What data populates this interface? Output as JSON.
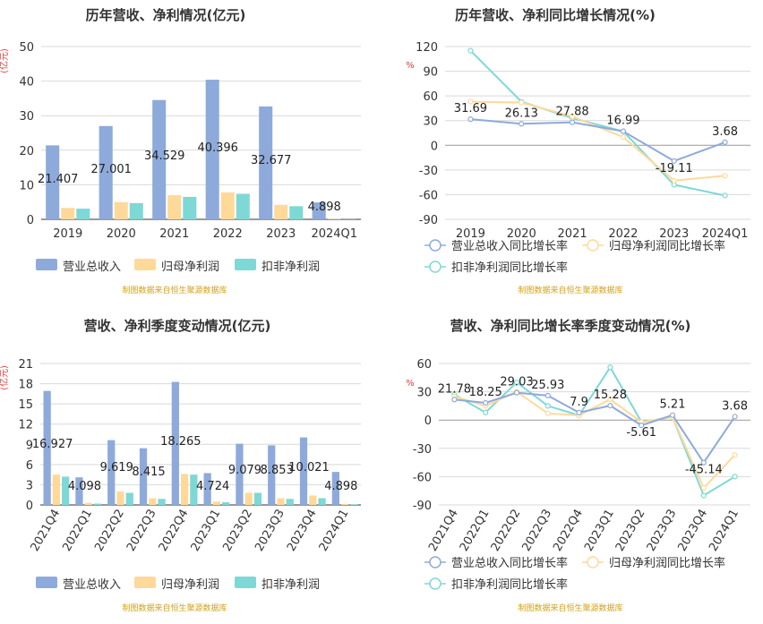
{
  "colors": {
    "revenue": "#8EAADB",
    "net_profit": "#FFD99A",
    "deducted_profit": "#7ED8D6",
    "unit_red": "#E03C3C",
    "source": "#D4A017",
    "axis": "#555555",
    "grid": "#D9D9D9"
  },
  "chart_data": [
    {
      "id": "annual_bar",
      "type": "bar",
      "title": "历年营收、净利情况(亿元)",
      "unit": "(亿元)",
      "categories": [
        "2019",
        "2020",
        "2021",
        "2022",
        "2023",
        "2024Q1"
      ],
      "ylim": [
        0,
        50
      ],
      "yticks": [
        0,
        10,
        20,
        30,
        40,
        50
      ],
      "series": [
        {
          "name": "营业总收入",
          "values": [
            21.407,
            27.001,
            34.529,
            40.396,
            32.677,
            4.898
          ],
          "labels": [
            "21.407",
            "27.001",
            "34.529",
            "40.396",
            "32.677",
            "4.898"
          ]
        },
        {
          "name": "归母净利润",
          "values": [
            3.3,
            5.0,
            7.0,
            7.8,
            4.2,
            0.1
          ]
        },
        {
          "name": "扣非净利润",
          "values": [
            3.1,
            4.7,
            6.5,
            7.4,
            3.8,
            0.05
          ]
        }
      ],
      "legend": "bottom",
      "source": "制图数据来自恒生聚源数据库"
    },
    {
      "id": "annual_line",
      "type": "line",
      "title": "历年营收、净利同比增长情况(%)",
      "unit": "%",
      "categories": [
        "2019",
        "2020",
        "2021",
        "2022",
        "2023",
        "2024Q1"
      ],
      "ylim": [
        -90,
        120
      ],
      "yticks": [
        -90,
        -60,
        -30,
        0,
        30,
        60,
        90,
        120
      ],
      "series": [
        {
          "name": "营业总收入同比增长率",
          "values": [
            31.69,
            26.13,
            27.88,
            16.99,
            -19.11,
            3.68
          ],
          "labels": [
            "31.69",
            "26.13",
            "27.88",
            "16.99",
            "-19.11",
            "3.68"
          ]
        },
        {
          "name": "归母净利润同比增长率",
          "values": [
            53,
            52,
            35,
            10,
            -43,
            -37
          ]
        },
        {
          "name": "扣非净利润同比增长率",
          "values": [
            115,
            53,
            33,
            17,
            -48,
            -61
          ]
        }
      ],
      "legend": "bottom",
      "source": "制图数据来自恒生聚源数据库"
    },
    {
      "id": "quarter_bar",
      "type": "bar",
      "title": "营收、净利季度变动情况(亿元)",
      "unit": "(亿元)",
      "categories": [
        "2021Q4",
        "2022Q1",
        "2022Q2",
        "2022Q3",
        "2022Q4",
        "2023Q1",
        "2023Q2",
        "2023Q3",
        "2023Q4",
        "2024Q1"
      ],
      "ylim": [
        0,
        21
      ],
      "yticks": [
        0,
        3,
        6,
        9,
        12,
        15,
        18,
        21
      ],
      "series": [
        {
          "name": "营业总收入",
          "values": [
            16.927,
            4.098,
            9.619,
            8.415,
            18.265,
            4.724,
            9.079,
            8.853,
            10.021,
            4.898
          ],
          "labels": [
            "16.927",
            "4.098",
            "9.619",
            "8.415",
            "18.265",
            "4.724",
            "9.079",
            "8.853",
            "10.021",
            "4.898"
          ]
        },
        {
          "name": "归母净利润",
          "values": [
            4.5,
            0.3,
            2.0,
            1.0,
            4.6,
            0.5,
            1.8,
            1.0,
            1.4,
            0.15
          ]
        },
        {
          "name": "扣非净利润",
          "values": [
            4.2,
            0.2,
            1.8,
            0.9,
            4.5,
            0.4,
            1.8,
            0.9,
            1.0,
            0.1
          ]
        }
      ],
      "legend": "bottom",
      "source": "制图数据来自恒生聚源数据库"
    },
    {
      "id": "quarter_line",
      "type": "line",
      "title": "营收、净利同比增长率季度变动情况(%)",
      "unit": "%",
      "categories": [
        "2021Q4",
        "2022Q1",
        "2022Q2",
        "2022Q3",
        "2022Q4",
        "2023Q1",
        "2023Q2",
        "2023Q3",
        "2023Q4",
        "2024Q1"
      ],
      "ylim": [
        -90,
        60
      ],
      "yticks": [
        -90,
        -60,
        -30,
        0,
        30,
        60
      ],
      "series": [
        {
          "name": "营业总收入同比增长率",
          "values": [
            21.78,
            18.25,
            29.03,
            25.93,
            7.9,
            15.28,
            -5.61,
            5.21,
            -45.14,
            3.68
          ],
          "labels": [
            "21.78",
            "18.25",
            "29.03",
            "25.93",
            "7.9",
            "15.28",
            "-5.61",
            "5.21",
            "-45.14",
            "3.68"
          ]
        },
        {
          "name": "归母净利润同比增长率",
          "values": [
            25,
            15,
            30,
            7,
            5,
            22,
            -2,
            3,
            -72,
            -37
          ]
        },
        {
          "name": "扣非净利润同比增长率",
          "values": [
            27,
            8,
            40,
            15,
            5,
            56,
            -2,
            3,
            -80,
            -60
          ]
        }
      ],
      "legend": "bottom",
      "source": "制图数据来自恒生聚源数据库"
    }
  ]
}
